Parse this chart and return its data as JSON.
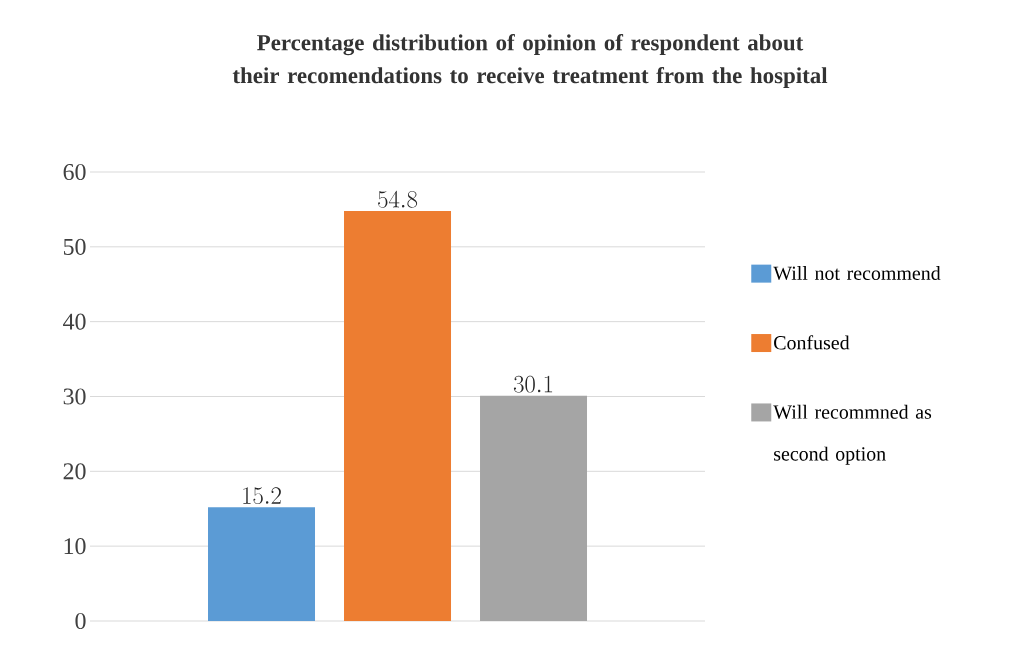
{
  "chart_data": {
    "type": "bar",
    "title": "Percentage distribution of opinion of respondent about their recomendations to receive treatment from the hospital",
    "categories": [
      null
    ],
    "series": [
      {
        "name": "Will not recommend",
        "color": "#5b9bd5",
        "values": [
          15.2
        ]
      },
      {
        "name": "Confused",
        "color": "#ed7d31",
        "values": [
          54.8
        ]
      },
      {
        "name": "Will recommned as second option",
        "color": "#a5a5a5",
        "values": [
          30.1
        ]
      }
    ],
    "ylim": [
      0,
      60
    ],
    "yticks": [
      0,
      10,
      20,
      30,
      40,
      50,
      60
    ],
    "grid": "y",
    "legend": "right",
    "data_labels": true
  }
}
